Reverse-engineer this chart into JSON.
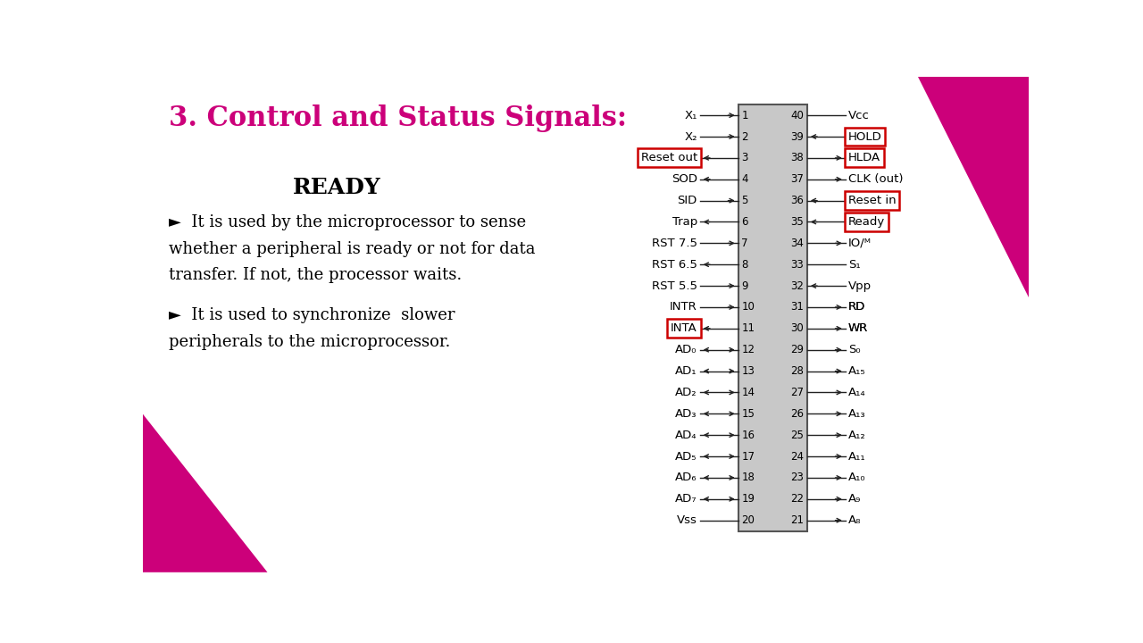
{
  "title": "3. Control and Status Signals:",
  "title_color": "#cc007a",
  "bg_color": "#ffffff",
  "subtitle": "READY",
  "left_pins": [
    {
      "num": 1,
      "label": "X₁",
      "arrow": "in",
      "boxed": false
    },
    {
      "num": 2,
      "label": "X₂",
      "arrow": "in",
      "boxed": false
    },
    {
      "num": 3,
      "label": "Reset out",
      "arrow": "out",
      "boxed": true
    },
    {
      "num": 4,
      "label": "SOD",
      "arrow": "out",
      "boxed": false
    },
    {
      "num": 5,
      "label": "SID",
      "arrow": "in",
      "boxed": false
    },
    {
      "num": 6,
      "label": "Trap",
      "arrow": "out",
      "boxed": false
    },
    {
      "num": 7,
      "label": "RST 7.5",
      "arrow": "in",
      "boxed": false
    },
    {
      "num": 8,
      "label": "RST 6.5",
      "arrow": "out",
      "boxed": false
    },
    {
      "num": 9,
      "label": "RST 5.5",
      "arrow": "in",
      "boxed": false
    },
    {
      "num": 10,
      "label": "INTR",
      "arrow": "in",
      "boxed": false
    },
    {
      "num": 11,
      "label": "INTA",
      "arrow": "out",
      "boxed": true
    },
    {
      "num": 12,
      "label": "AD₀",
      "arrow": "both",
      "boxed": false
    },
    {
      "num": 13,
      "label": "AD₁",
      "arrow": "both",
      "boxed": false
    },
    {
      "num": 14,
      "label": "AD₂",
      "arrow": "both",
      "boxed": false
    },
    {
      "num": 15,
      "label": "AD₃",
      "arrow": "both",
      "boxed": false
    },
    {
      "num": 16,
      "label": "AD₄",
      "arrow": "both",
      "boxed": false
    },
    {
      "num": 17,
      "label": "AD₅",
      "arrow": "both",
      "boxed": false
    },
    {
      "num": 18,
      "label": "AD₆",
      "arrow": "both",
      "boxed": false
    },
    {
      "num": 19,
      "label": "AD₇",
      "arrow": "both",
      "boxed": false
    },
    {
      "num": 20,
      "label": "Vss",
      "arrow": "none",
      "boxed": false
    }
  ],
  "right_pins": [
    {
      "num": 40,
      "label": "Vcc",
      "arrow": "none",
      "boxed": false
    },
    {
      "num": 39,
      "label": "HOLD",
      "arrow": "in",
      "boxed": true
    },
    {
      "num": 38,
      "label": "HLDA",
      "arrow": "out",
      "boxed": true
    },
    {
      "num": 37,
      "label": "CLK (out)",
      "arrow": "out",
      "boxed": false
    },
    {
      "num": 36,
      "label": "Reset in",
      "arrow": "in",
      "boxed": true
    },
    {
      "num": 35,
      "label": "Ready",
      "arrow": "in",
      "boxed": true
    },
    {
      "num": 34,
      "label": "IO/ᴹ",
      "arrow": "out",
      "boxed": false
    },
    {
      "num": 33,
      "label": "S₁",
      "arrow": "none",
      "boxed": false
    },
    {
      "num": 32,
      "label": "Vpp",
      "arrow": "in",
      "boxed": false
    },
    {
      "num": 31,
      "label": "RD",
      "arrow": "out",
      "boxed": false
    },
    {
      "num": 30,
      "label": "WR",
      "arrow": "out",
      "boxed": false
    },
    {
      "num": 29,
      "label": "S₀",
      "arrow": "out",
      "boxed": false
    },
    {
      "num": 28,
      "label": "A₁₅",
      "arrow": "out",
      "boxed": false
    },
    {
      "num": 27,
      "label": "A₁₄",
      "arrow": "out",
      "boxed": false
    },
    {
      "num": 26,
      "label": "A₁₃",
      "arrow": "out",
      "boxed": false
    },
    {
      "num": 25,
      "label": "A₁₂",
      "arrow": "out",
      "boxed": false
    },
    {
      "num": 24,
      "label": "A₁₁",
      "arrow": "out",
      "boxed": false
    },
    {
      "num": 23,
      "label": "A₁₀",
      "arrow": "out",
      "boxed": false
    },
    {
      "num": 22,
      "label": "A₉",
      "arrow": "out",
      "boxed": false
    },
    {
      "num": 21,
      "label": "A₈",
      "arrow": "out",
      "boxed": false
    }
  ],
  "chip_color": "#c8c8c8",
  "box_color": "#cc0000",
  "overline_pins": [
    31,
    30
  ]
}
